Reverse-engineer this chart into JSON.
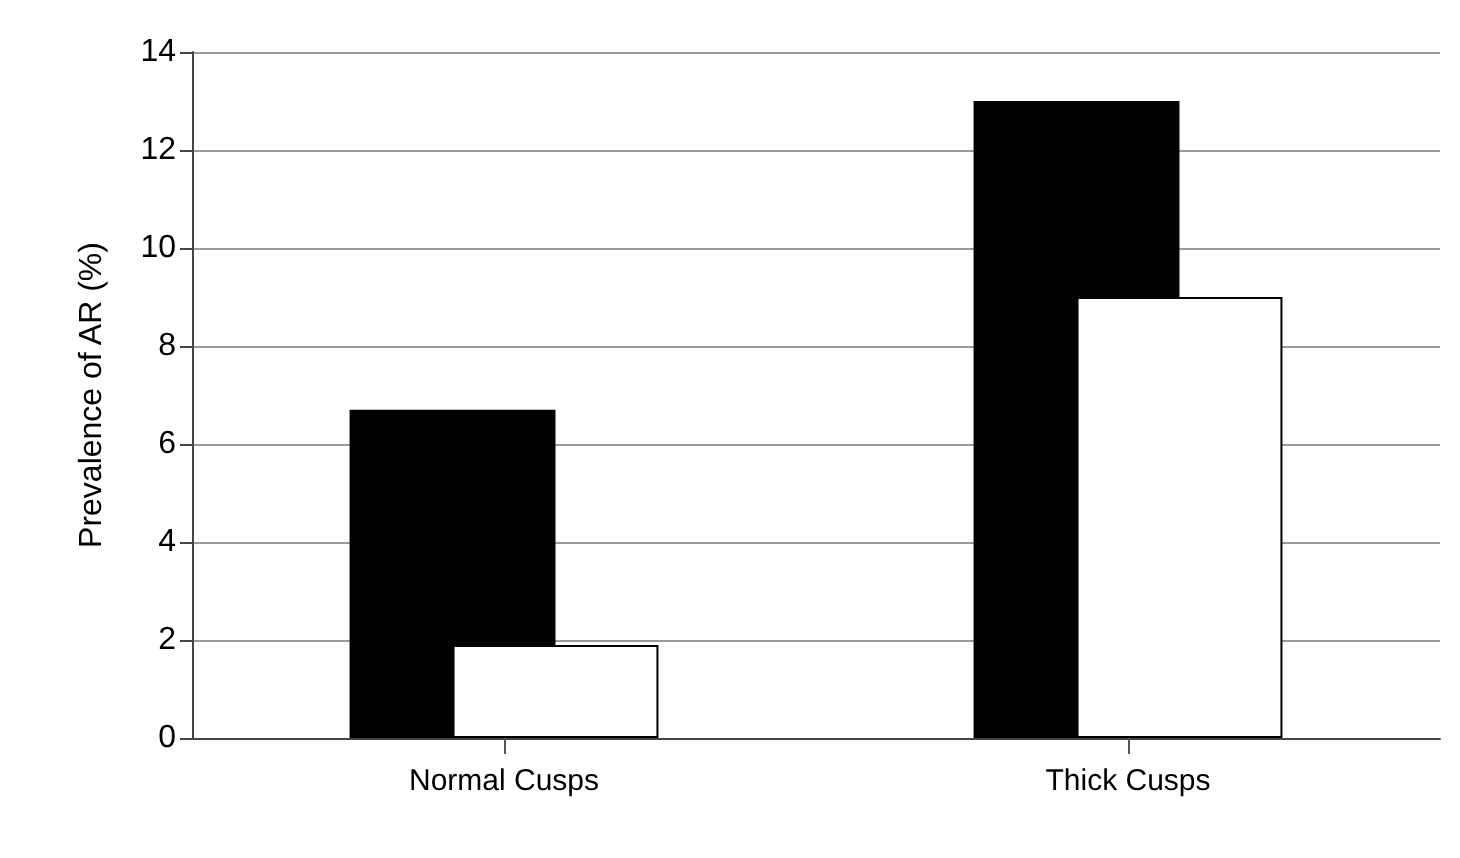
{
  "chart_data": {
    "type": "bar",
    "ylabel": "Prevalence of AR (%)",
    "categories": [
      "Normal Cusps",
      "Thick Cusps"
    ],
    "series": [
      {
        "color": "#000000",
        "values": [
          6.7,
          13
        ]
      },
      {
        "color": "#ffffff",
        "values": [
          1.9,
          9
        ]
      }
    ],
    "ylim": [
      0,
      14
    ],
    "yticks": [
      0,
      2,
      4,
      6,
      8,
      10,
      12,
      14
    ],
    "grid": "y"
  }
}
